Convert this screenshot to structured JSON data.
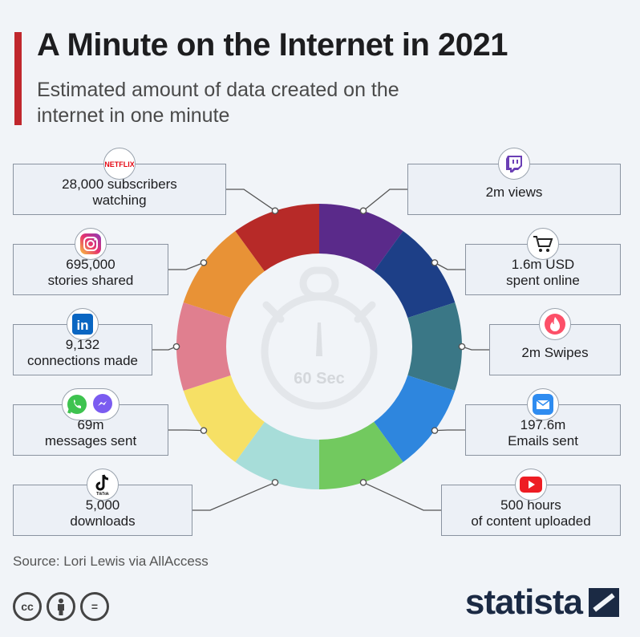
{
  "header": {
    "title": "A Minute on the Internet in 2021",
    "subtitle": "Estimated amount of data created on the internet in one minute"
  },
  "chart_data": {
    "type": "pie",
    "center_label": "60 Sec",
    "categories": [
      {
        "platform": "Twitch",
        "icon": "twitch-icon",
        "text": "2m views",
        "color": "#5a2a8a"
      },
      {
        "platform": "Online shopping",
        "icon": "shopping-cart-icon",
        "text": "1.6m USD\nspent online",
        "color": "#1d3f87"
      },
      {
        "platform": "Tinder",
        "icon": "tinder-icon",
        "text": "2m Swipes",
        "color": "#3a7786"
      },
      {
        "platform": "Email",
        "icon": "email-icon",
        "text": "197.6m\nEmails sent",
        "color": "#2e86de"
      },
      {
        "platform": "YouTube",
        "icon": "youtube-icon",
        "text": "500 hours\nof content uploaded",
        "color": "#72c95f"
      },
      {
        "platform": "TikTok",
        "icon": "tiktok-icon",
        "icon_label": "TikTok",
        "text": "5,000\ndownloads",
        "color": "#a7ddd9"
      },
      {
        "platform": "WhatsApp / Messenger",
        "icon": "whatsapp-messenger-icon",
        "text": "69m\nmessages sent",
        "color": "#f6e065"
      },
      {
        "platform": "LinkedIn",
        "icon": "linkedin-icon",
        "icon_label": "in",
        "text": "9,132\nconnections made",
        "color": "#e07f8f"
      },
      {
        "platform": "Instagram",
        "icon": "instagram-icon",
        "text": "695,000\nstories shared",
        "color": "#e89236"
      },
      {
        "platform": "Netflix",
        "icon": "netflix-icon",
        "icon_label": "NETFLIX",
        "text": "28,000 subscribers\nwatching",
        "color": "#b72a28"
      }
    ]
  },
  "footer": {
    "source": "Source: Lori Lewis via AllAccess",
    "licence_icons": [
      "cc-icon",
      "attribution-icon",
      "no-derivatives-icon"
    ],
    "cc_label": "cc",
    "nd_label": "=",
    "brand": "statista"
  }
}
